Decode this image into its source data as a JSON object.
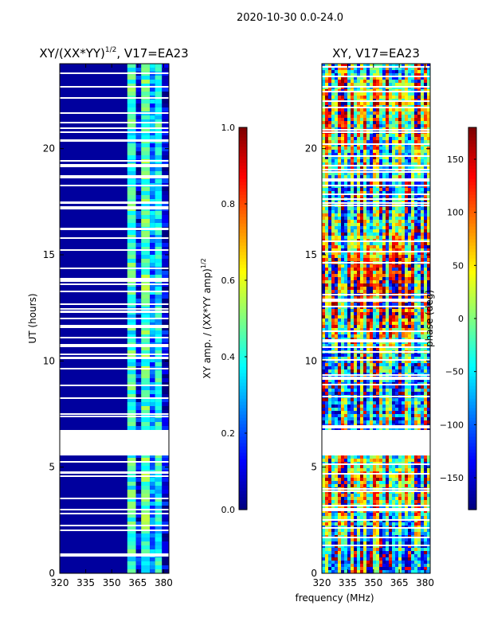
{
  "figure": {
    "suptitle": "2020-10-30 0.0-24.0",
    "xlabel": "frequency (MHz)"
  },
  "chart_data": [
    {
      "type": "heatmap",
      "id": "amp",
      "title_main": "XY/(XX*YY)",
      "title_sup": "1/2",
      "title_tail": ", V17=EA23",
      "xlabel": "",
      "ylabel": "UT (hours)",
      "xlim": [
        320,
        383
      ],
      "ylim": [
        0,
        24
      ],
      "xticks": [
        320,
        335,
        350,
        365,
        380
      ],
      "yticks": [
        0,
        5,
        10,
        15,
        20
      ],
      "colormap": "jet",
      "colorbar": {
        "label_main": "XY amp. / (XX*YY amp)",
        "label_sup": "1/2",
        "range": [
          0.0,
          1.0
        ],
        "ticks": [
          "0.0",
          "0.2",
          "0.4",
          "0.6",
          "0.8",
          "1.0"
        ],
        "tick_values": [
          0.0,
          0.2,
          0.4,
          0.6,
          0.8,
          1.0
        ]
      },
      "gaps_hours": [
        [
          5.55,
          6.75
        ]
      ],
      "freq_bands_mhz": [
        {
          "from": 320,
          "to": 359,
          "level": 0.03
        },
        {
          "from": 359,
          "to": 364,
          "level": 0.42
        },
        {
          "from": 364,
          "to": 367,
          "level": 0.12
        },
        {
          "from": 367,
          "to": 372,
          "level": 0.45
        },
        {
          "from": 372,
          "to": 375,
          "level": 0.25
        },
        {
          "from": 375,
          "to": 379,
          "level": 0.38
        },
        {
          "from": 379,
          "to": 383,
          "level": 0.08
        }
      ]
    },
    {
      "type": "heatmap",
      "id": "phase",
      "title_main": "XY, V17=EA23",
      "xlabel": "",
      "ylabel": "",
      "xlim": [
        320,
        383
      ],
      "ylim": [
        0,
        24
      ],
      "xticks": [
        320,
        335,
        350,
        365,
        380
      ],
      "yticks": [
        0,
        5,
        10,
        15,
        20
      ],
      "colormap": "jet",
      "colorbar": {
        "label_main": "phase (deg)",
        "range": [
          -180,
          180
        ],
        "ticks": [
          "−150",
          "−100",
          "−50",
          "0",
          "50",
          "100",
          "150"
        ],
        "tick_values": [
          -150,
          -100,
          -50,
          0,
          50,
          100,
          150
        ]
      },
      "gaps_hours": [
        [
          5.55,
          6.75
        ]
      ],
      "value_range_deg": [
        -180,
        180
      ]
    }
  ]
}
